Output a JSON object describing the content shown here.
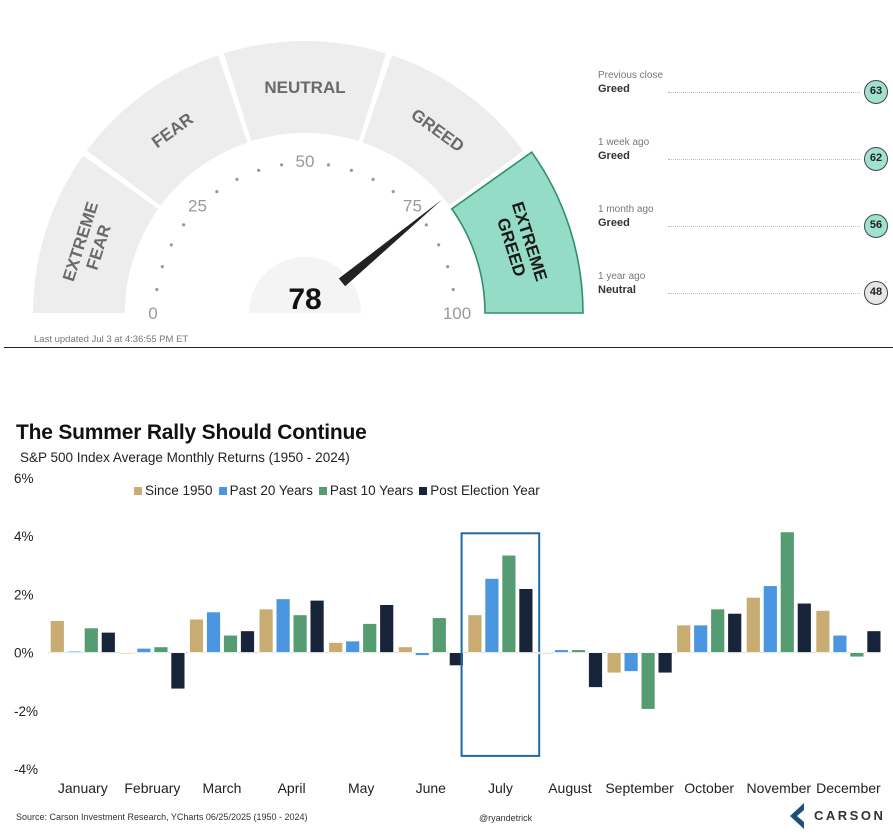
{
  "gauge": {
    "value": 78,
    "segments": [
      "EXTREME FEAR",
      "FEAR",
      "NEUTRAL",
      "GREED",
      "EXTREME GREED"
    ],
    "ticks": [
      "0",
      "25",
      "50",
      "75",
      "100"
    ],
    "active_segment": "EXTREME GREED",
    "colors": {
      "segment": "#ededed",
      "active": "#95dcc6",
      "active_border": "#2f8f6f",
      "needle": "#222222"
    },
    "last_updated": "Last updated Jul 3 at 4:36:55 PM ET"
  },
  "history": [
    {
      "when": "Previous close",
      "label": "Greed",
      "score": "63",
      "kind": "greed"
    },
    {
      "when": "1 week ago",
      "label": "Greed",
      "score": "62",
      "kind": "greed"
    },
    {
      "when": "1 month ago",
      "label": "Greed",
      "score": "56",
      "kind": "greed"
    },
    {
      "when": "1 year ago",
      "label": "Neutral",
      "score": "48",
      "kind": "neutral"
    }
  ],
  "chart_data": {
    "type": "bar",
    "title": "The Summer Rally Should Continue",
    "subtitle": "S&P 500 Index Average Monthly Returns (1950 - 2024)",
    "categories": [
      "January",
      "February",
      "March",
      "April",
      "May",
      "June",
      "July",
      "August",
      "September",
      "October",
      "November",
      "December"
    ],
    "series": [
      {
        "name": "Since 1950",
        "color": "#c9ac72",
        "values": [
          1.1,
          0.0,
          1.15,
          1.5,
          0.35,
          0.2,
          1.3,
          0.0,
          -0.7,
          0.95,
          1.9,
          1.45
        ]
      },
      {
        "name": "Past 20 Years",
        "color": "#4a96e0",
        "values": [
          0.05,
          0.15,
          1.4,
          1.85,
          0.4,
          -0.1,
          2.55,
          0.1,
          -0.65,
          0.95,
          2.3,
          0.6
        ]
      },
      {
        "name": "Past 10 Years",
        "color": "#559c72",
        "values": [
          0.85,
          0.2,
          0.6,
          1.3,
          1.0,
          1.2,
          3.35,
          0.1,
          -1.95,
          1.5,
          4.15,
          -0.15
        ]
      },
      {
        "name": "Post Election Year",
        "color": "#17243a",
        "values": [
          0.7,
          -1.25,
          0.75,
          1.8,
          1.65,
          -0.45,
          2.2,
          -1.2,
          -0.7,
          1.35,
          1.7,
          0.75
        ]
      }
    ],
    "ylim": [
      -4,
      6
    ],
    "yticks": [
      "-4%",
      "-2%",
      "0%",
      "2%",
      "4%",
      "6%"
    ],
    "highlight_category": "July",
    "highlight_color": "#1f6aa5",
    "grid": false,
    "legend": "top",
    "source": "Source: Carson Investment Research, YCharts 06/25/2025 (1950 - 2024)",
    "handle": "@ryandetrick",
    "logo_text": "CARSON",
    "logo_color": "#1d4f7c"
  }
}
